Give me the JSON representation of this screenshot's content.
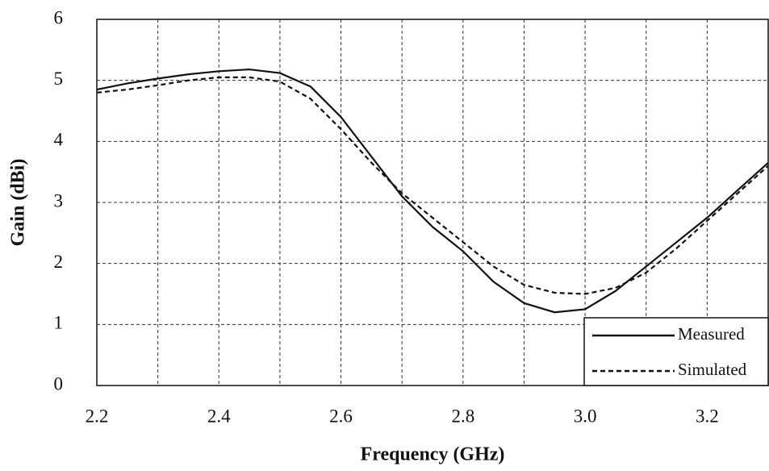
{
  "chart_data": {
    "type": "line",
    "xlabel": "Frequency (GHz)",
    "ylabel": "Gain (dBi)",
    "x": [
      2.2,
      2.25,
      2.3,
      2.35,
      2.4,
      2.45,
      2.5,
      2.55,
      2.6,
      2.65,
      2.7,
      2.75,
      2.8,
      2.85,
      2.9,
      2.95,
      3.0,
      3.05,
      3.1,
      3.15,
      3.2,
      3.25,
      3.3
    ],
    "series": [
      {
        "name": "Measured",
        "color": "#111111",
        "dash": "solid",
        "values": [
          4.85,
          4.95,
          5.03,
          5.1,
          5.15,
          5.18,
          5.12,
          4.9,
          4.4,
          3.75,
          3.1,
          2.6,
          2.2,
          1.7,
          1.35,
          1.2,
          1.25,
          1.55,
          1.95,
          2.35,
          2.75,
          3.2,
          3.65
        ]
      },
      {
        "name": "Simulated",
        "color": "#111111",
        "dash": "dashed",
        "values": [
          4.8,
          4.85,
          4.92,
          5.0,
          5.05,
          5.05,
          4.98,
          4.7,
          4.2,
          3.65,
          3.15,
          2.75,
          2.35,
          1.95,
          1.65,
          1.52,
          1.5,
          1.6,
          1.85,
          2.25,
          2.7,
          3.15,
          3.6
        ]
      }
    ],
    "xlim": [
      2.2,
      3.3
    ],
    "ylim": [
      0,
      6
    ],
    "xticks": [
      2.2,
      2.4,
      2.6,
      2.8,
      {
        "value": 3,
        "label": "3.0"
      },
      3.2
    ],
    "yticks": [
      0,
      1,
      2,
      3,
      4,
      5,
      6
    ],
    "grid": true,
    "legend": "lower right"
  }
}
